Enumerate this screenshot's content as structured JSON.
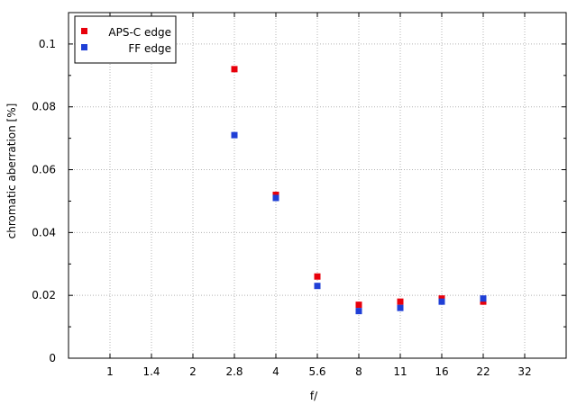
{
  "chart_data": {
    "type": "scatter",
    "xlabel": "f/",
    "ylabel": "chromatic  aberration [%]",
    "x_scale": "log2 (f-stop series)",
    "categories": [
      "1",
      "1.4",
      "2",
      "2.8",
      "4",
      "5.6",
      "8",
      "11",
      "16",
      "22",
      "32"
    ],
    "ylim": [
      0,
      0.11
    ],
    "yticks": [
      "0",
      "0.02",
      "0.04",
      "0.06",
      "0.08",
      "0.1"
    ],
    "ytick_values": [
      0,
      0.02,
      0.04,
      0.06,
      0.08,
      0.1
    ],
    "grid": true,
    "legend_position": "top-left",
    "series": [
      {
        "name": "APS-C edge",
        "color": "#e8000b",
        "x": [
          "2.8",
          "4",
          "5.6",
          "8",
          "11",
          "16",
          "22"
        ],
        "values": [
          0.092,
          0.052,
          0.026,
          0.017,
          0.018,
          0.019,
          0.018
        ]
      },
      {
        "name": "FF edge",
        "color": "#1f3fd6",
        "x": [
          "2.8",
          "4",
          "5.6",
          "8",
          "11",
          "16",
          "22"
        ],
        "values": [
          0.071,
          0.051,
          0.023,
          0.015,
          0.016,
          0.018,
          0.019
        ]
      }
    ]
  }
}
